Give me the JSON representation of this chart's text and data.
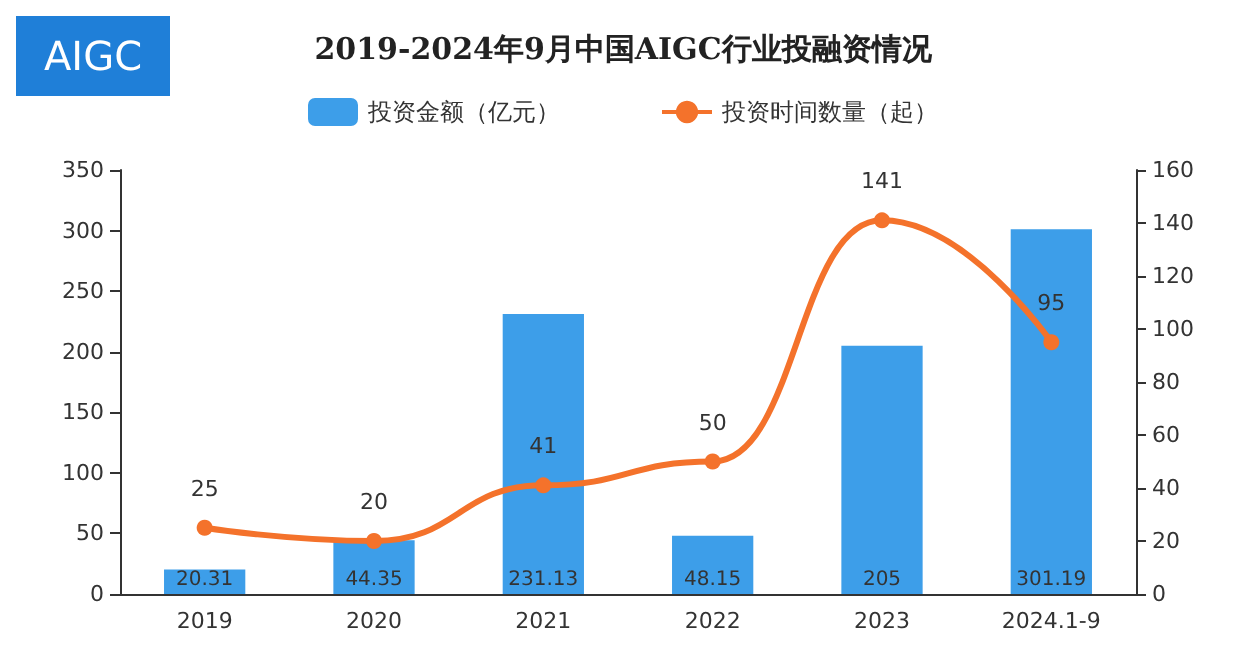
{
  "chart_data": {
    "type": "bar",
    "title": "2019-2024年9月中国AIGC行业投融资情况",
    "categories": [
      "2019",
      "2020",
      "2021",
      "2022",
      "2023",
      "2024.1-9"
    ],
    "series": [
      {
        "name": "投资金额（亿元）",
        "color": "#3d9ee9",
        "values": [
          20.31,
          44.35,
          231.13,
          48.15,
          205,
          301.19
        ]
      },
      {
        "name": "投资时间数量（起）",
        "type": "line",
        "axis": "y2",
        "color": "#f4722b",
        "values": [
          25,
          20,
          41,
          50,
          141,
          95
        ]
      }
    ],
    "ylim": [
      0,
      350
    ],
    "yticks": [
      0,
      50,
      100,
      150,
      200,
      250,
      300,
      350
    ],
    "y2lim": [
      0,
      160
    ],
    "y2ticks": [
      0,
      20,
      40,
      60,
      80,
      100,
      120,
      140,
      160
    ],
    "data_labels": true,
    "legend": "top",
    "grid": false,
    "marker": "circle",
    "line_style": "solid",
    "annotations": [
      "AIGC"
    ]
  }
}
